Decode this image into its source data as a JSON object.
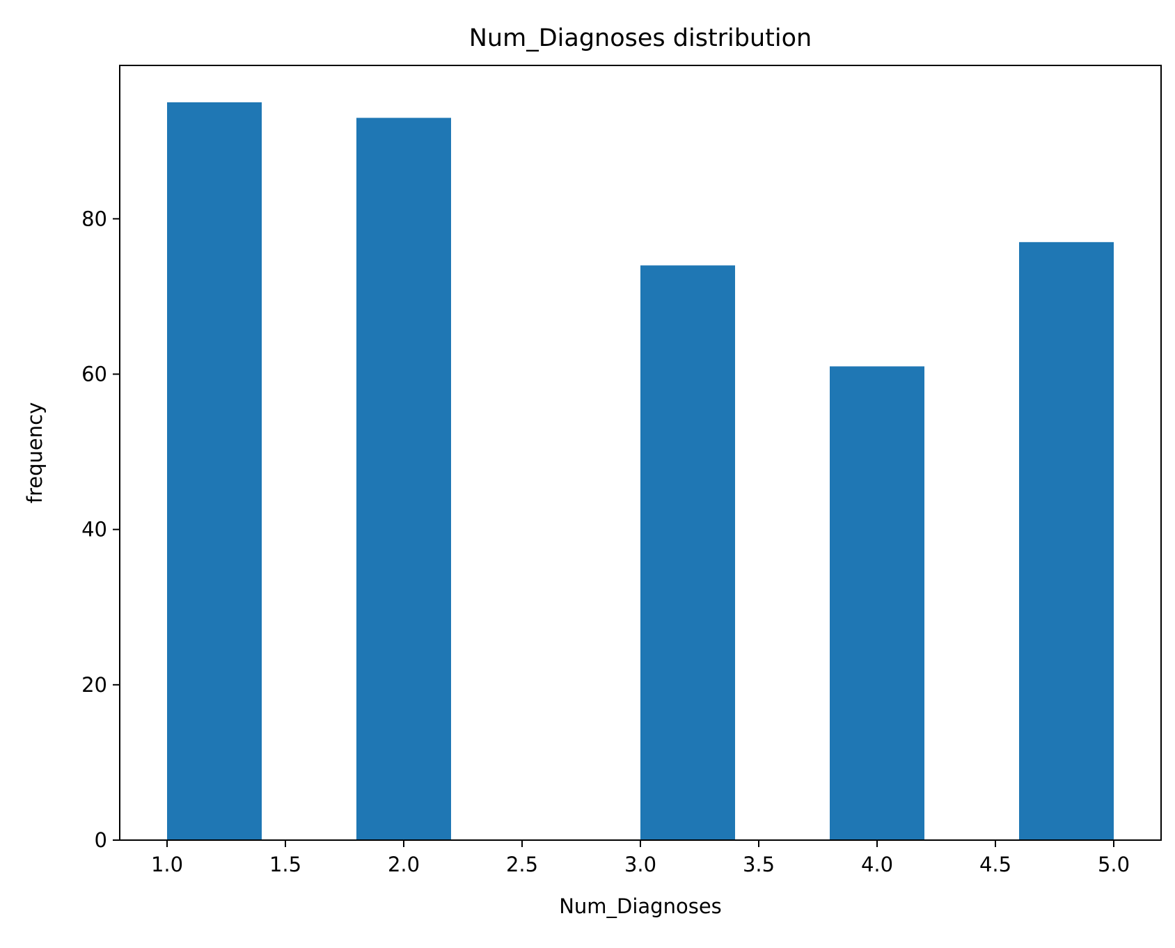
{
  "chart_data": {
    "type": "bar",
    "title": "Num_Diagnoses distribution",
    "xlabel": "Num_Diagnoses",
    "ylabel": "frequency",
    "xlim": [
      0.8,
      5.2
    ],
    "ylim": [
      0,
      99.75
    ],
    "x_ticks": [
      "1.0",
      "1.5",
      "2.0",
      "2.5",
      "3.0",
      "3.5",
      "4.0",
      "4.5",
      "5.0"
    ],
    "y_ticks": [
      "0",
      "20",
      "40",
      "60",
      "80"
    ],
    "bins": [
      {
        "start": 1.0,
        "end": 1.4,
        "value": 95
      },
      {
        "start": 1.8,
        "end": 2.2,
        "value": 93
      },
      {
        "start": 3.0,
        "end": 3.4,
        "value": 74
      },
      {
        "start": 3.8,
        "end": 4.2,
        "value": 61
      },
      {
        "start": 4.6,
        "end": 5.0,
        "value": 77
      }
    ],
    "bar_color": "#1f77b4",
    "grid": false,
    "legend": "none"
  }
}
